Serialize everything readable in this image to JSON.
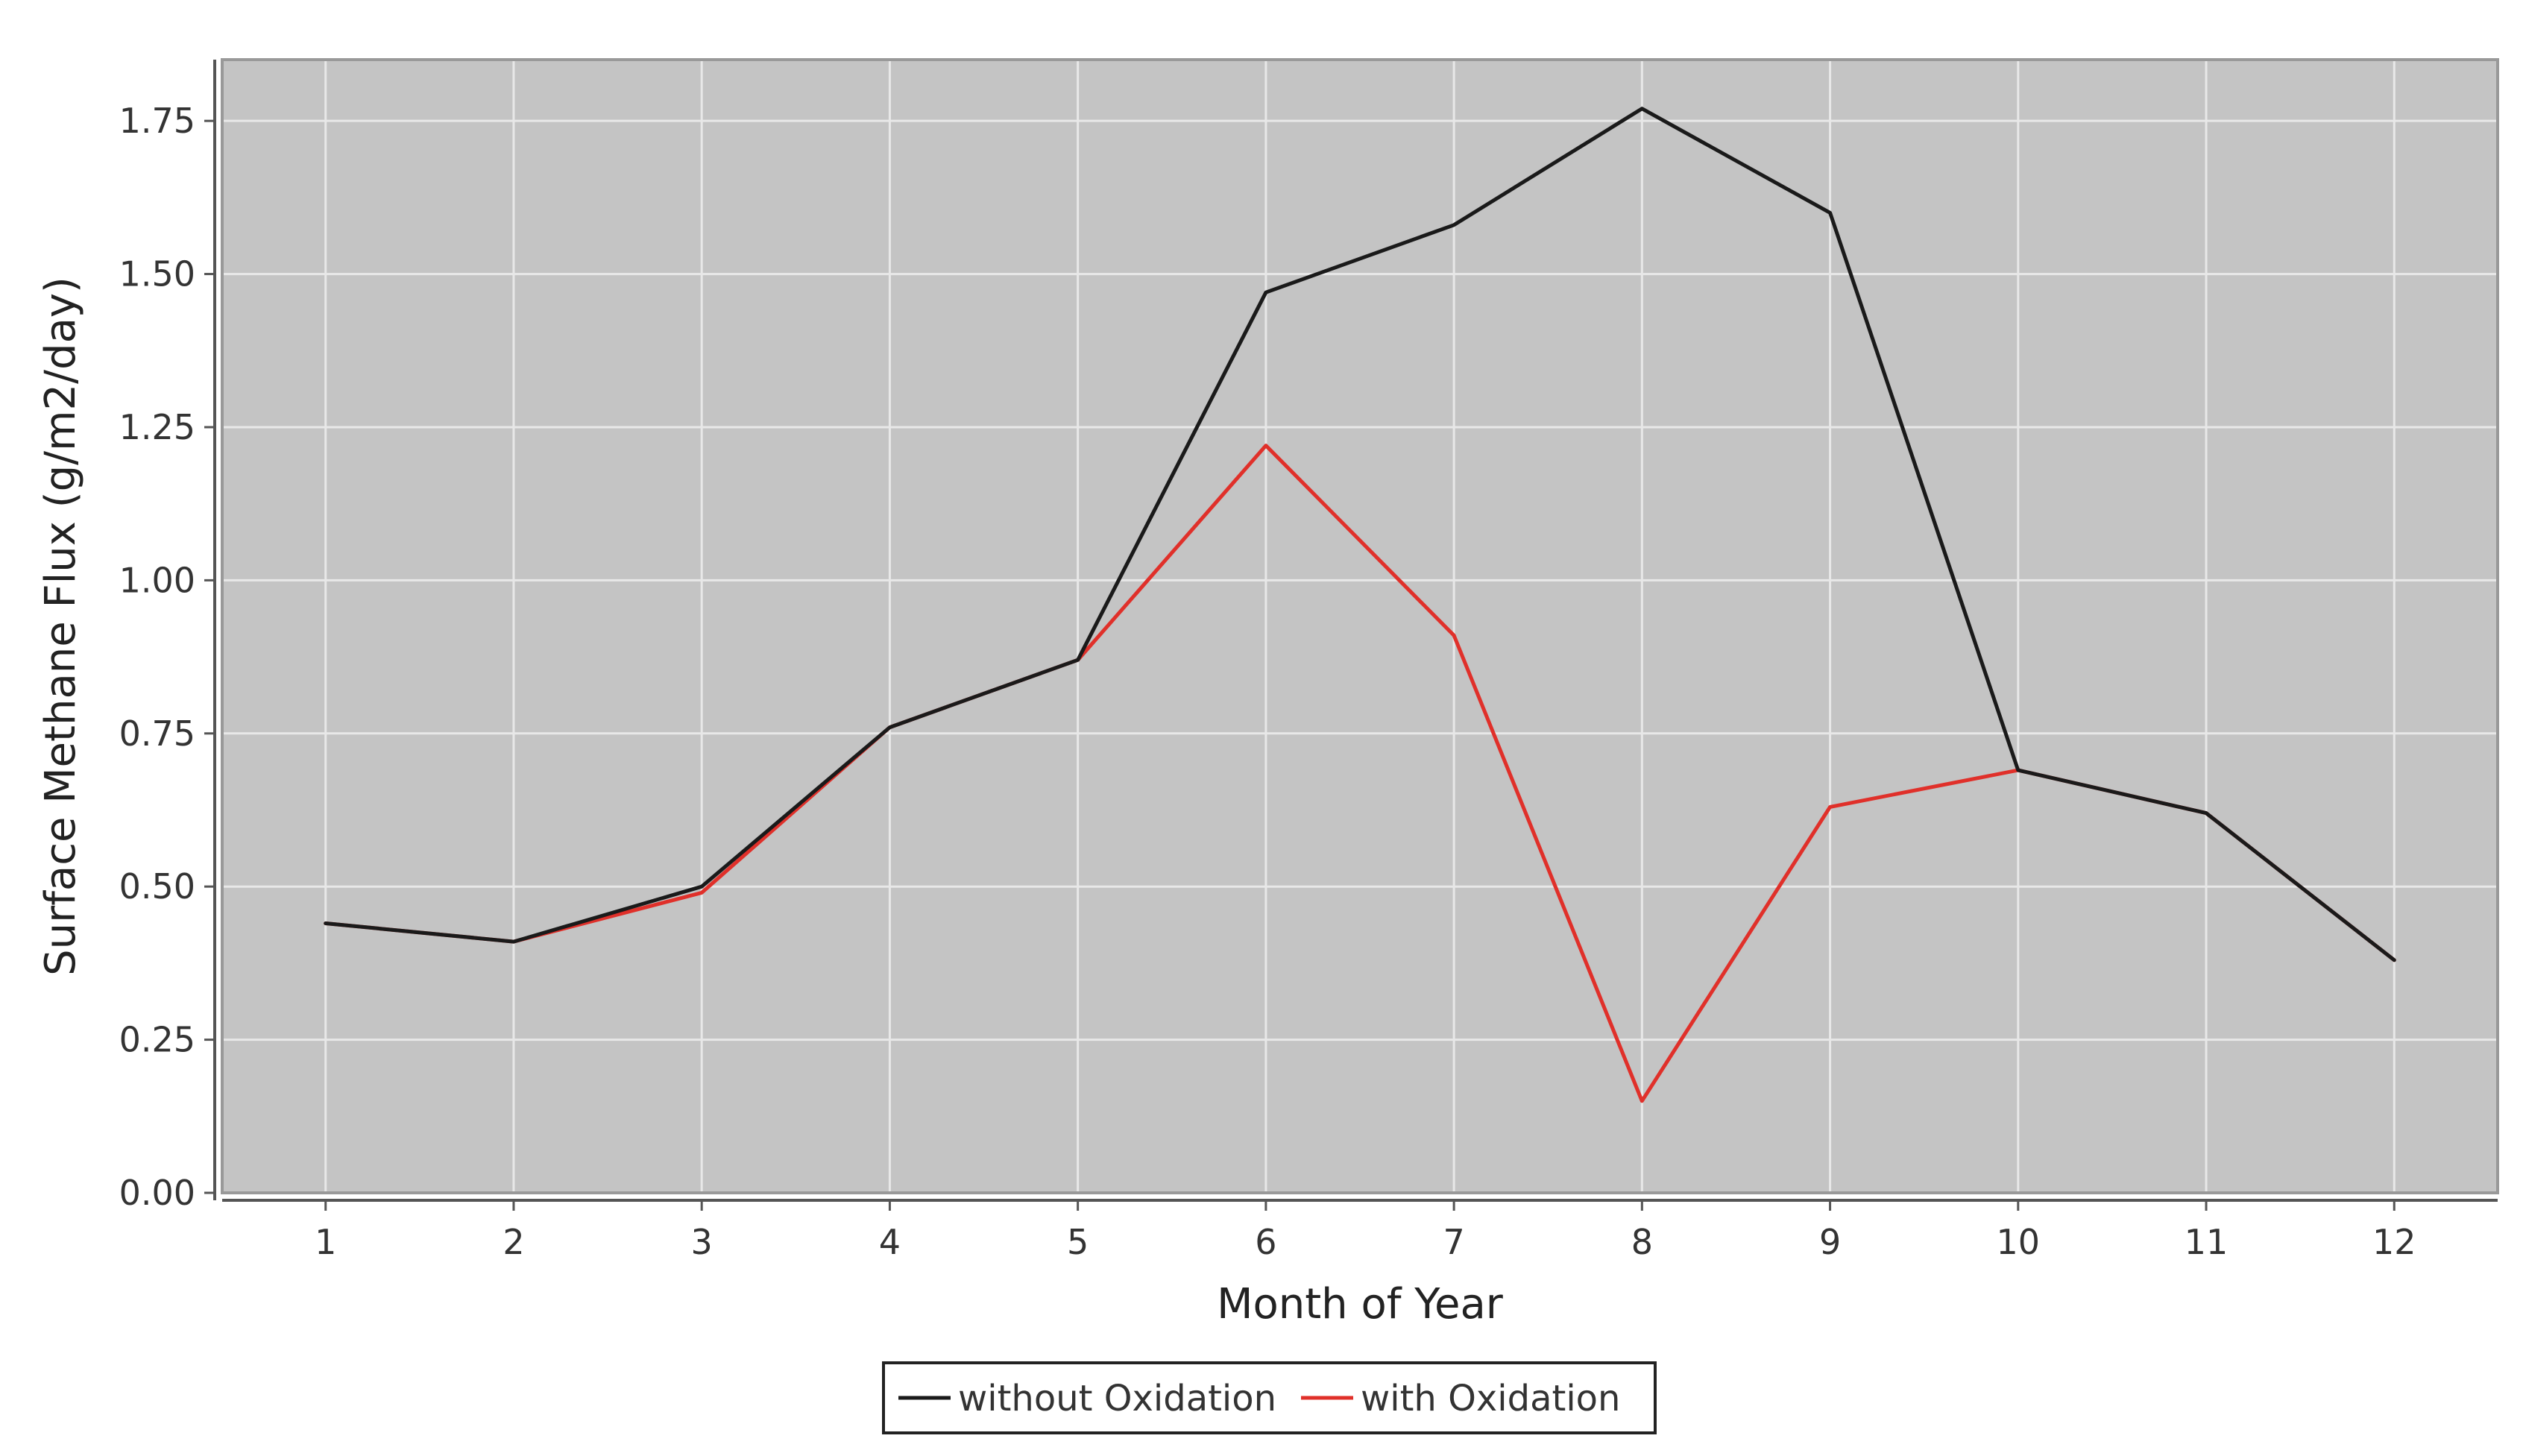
{
  "chart_data": {
    "type": "line",
    "title": "",
    "xlabel": "Month of Year",
    "ylabel": "Surface Methane Flux (g/m2/day)",
    "x": [
      1,
      2,
      3,
      4,
      5,
      6,
      7,
      8,
      9,
      10,
      11,
      12
    ],
    "x_tick_labels": [
      "1",
      "2",
      "3",
      "4",
      "5",
      "6",
      "7",
      "8",
      "9",
      "10",
      "11",
      "12"
    ],
    "xlim": [
      0.45,
      12.55
    ],
    "ylim": [
      0,
      1.85
    ],
    "y_ticks": [
      0,
      0.25,
      0.5,
      0.75,
      1.0,
      1.25,
      1.5,
      1.75
    ],
    "y_tick_labels": [
      "0.00",
      "0.25",
      "0.50",
      "0.75",
      "1.00",
      "1.25",
      "1.50",
      "1.75"
    ],
    "grid": true,
    "legend_position": "bottom-center",
    "series": [
      {
        "name": "without Oxidation",
        "color": "#1a1a1a",
        "values": [
          0.44,
          0.41,
          0.5,
          0.76,
          0.87,
          1.47,
          1.58,
          1.77,
          1.6,
          0.69,
          0.62,
          0.38
        ]
      },
      {
        "name": "with Oxidation",
        "color": "#e0302a",
        "values": [
          0.44,
          0.41,
          0.49,
          0.76,
          0.87,
          1.22,
          0.91,
          0.15,
          0.63,
          0.69,
          0.62,
          0.38
        ]
      }
    ],
    "colors": {
      "plot_background": "#c4c4c4",
      "gridline": "#e8e8e8",
      "frame": "#999999",
      "axis_line": "#555555"
    }
  }
}
